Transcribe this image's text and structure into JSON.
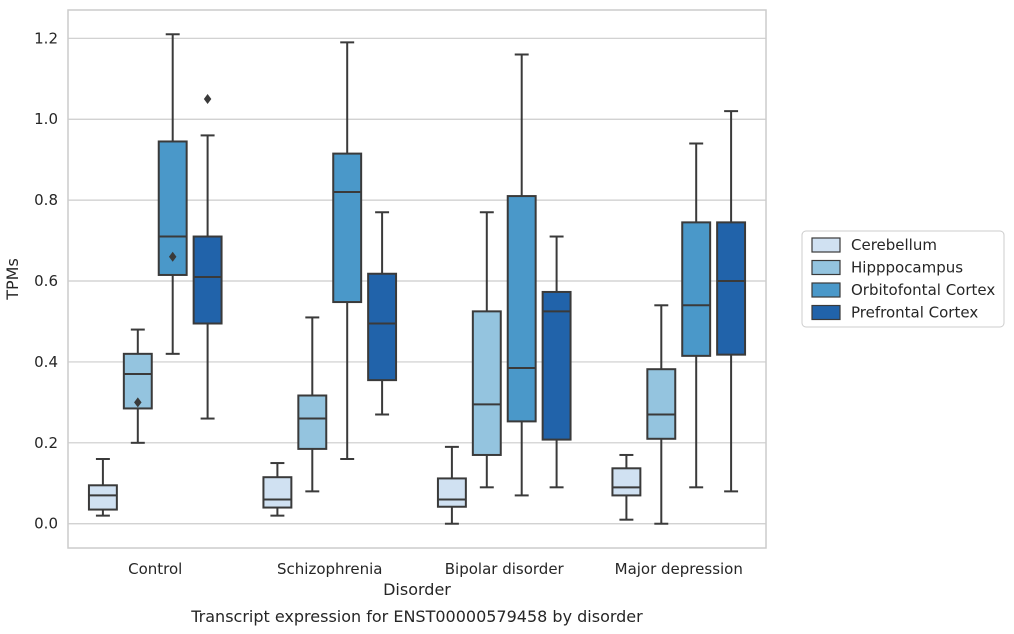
{
  "chart_data": {
    "type": "box",
    "caption": "Transcript expression for ENST00000579458 by disorder",
    "xlabel": "Disorder",
    "ylabel": "TPMs",
    "ylim": [
      -0.06,
      1.27
    ],
    "yticks": [
      0.0,
      0.2,
      0.4,
      0.6,
      0.8,
      1.0,
      1.2
    ],
    "ytick_labels": [
      "0.0",
      "0.2",
      "0.4",
      "0.6",
      "0.8",
      "1.0",
      "1.2"
    ],
    "grid": "horizontal",
    "legend_position": "right",
    "categories": [
      "Control",
      "Schizophrenia",
      "Bipolar disorder",
      "Major depression"
    ],
    "series": [
      {
        "name": "Cerebellum",
        "color": "#d0e1f2",
        "boxes": [
          {
            "whislo": 0.02,
            "q1": 0.035,
            "med": 0.07,
            "q3": 0.095,
            "whishi": 0.16,
            "fliers": []
          },
          {
            "whislo": 0.02,
            "q1": 0.04,
            "med": 0.06,
            "q3": 0.115,
            "whishi": 0.15,
            "fliers": []
          },
          {
            "whislo": 0.0,
            "q1": 0.042,
            "med": 0.06,
            "q3": 0.112,
            "whishi": 0.19,
            "fliers": []
          },
          {
            "whislo": 0.01,
            "q1": 0.07,
            "med": 0.09,
            "q3": 0.137,
            "whishi": 0.17,
            "fliers": []
          }
        ]
      },
      {
        "name": "Hipppocampus",
        "color": "#94c4df",
        "boxes": [
          {
            "whislo": 0.2,
            "q1": 0.285,
            "med": 0.37,
            "q3": 0.42,
            "whishi": 0.48,
            "fliers": [
              0.3
            ]
          },
          {
            "whislo": 0.08,
            "q1": 0.185,
            "med": 0.26,
            "q3": 0.317,
            "whishi": 0.51,
            "fliers": []
          },
          {
            "whislo": 0.09,
            "q1": 0.17,
            "med": 0.295,
            "q3": 0.525,
            "whishi": 0.77,
            "fliers": []
          },
          {
            "whislo": 0.0,
            "q1": 0.21,
            "med": 0.27,
            "q3": 0.382,
            "whishi": 0.54,
            "fliers": []
          }
        ]
      },
      {
        "name": "Orbitofontal Cortex",
        "color": "#4a98c9",
        "boxes": [
          {
            "whislo": 0.42,
            "q1": 0.615,
            "med": 0.71,
            "q3": 0.945,
            "whishi": 1.21,
            "fliers": [
              0.66
            ]
          },
          {
            "whislo": 0.16,
            "q1": 0.548,
            "med": 0.82,
            "q3": 0.915,
            "whishi": 1.19,
            "fliers": []
          },
          {
            "whislo": 0.07,
            "q1": 0.253,
            "med": 0.385,
            "q3": 0.81,
            "whishi": 1.16,
            "fliers": []
          },
          {
            "whislo": 0.09,
            "q1": 0.415,
            "med": 0.54,
            "q3": 0.745,
            "whishi": 0.94,
            "fliers": []
          }
        ]
      },
      {
        "name": "Prefrontal Cortex",
        "color": "#2163aa",
        "boxes": [
          {
            "whislo": 0.26,
            "q1": 0.495,
            "med": 0.61,
            "q3": 0.71,
            "whishi": 0.96,
            "fliers": [
              1.05
            ]
          },
          {
            "whislo": 0.27,
            "q1": 0.355,
            "med": 0.495,
            "q3": 0.618,
            "whishi": 0.77,
            "fliers": []
          },
          {
            "whislo": 0.09,
            "q1": 0.208,
            "med": 0.525,
            "q3": 0.573,
            "whishi": 0.71,
            "fliers": []
          },
          {
            "whislo": 0.08,
            "q1": 0.418,
            "med": 0.6,
            "q3": 0.745,
            "whishi": 1.02,
            "fliers": []
          }
        ]
      }
    ]
  }
}
